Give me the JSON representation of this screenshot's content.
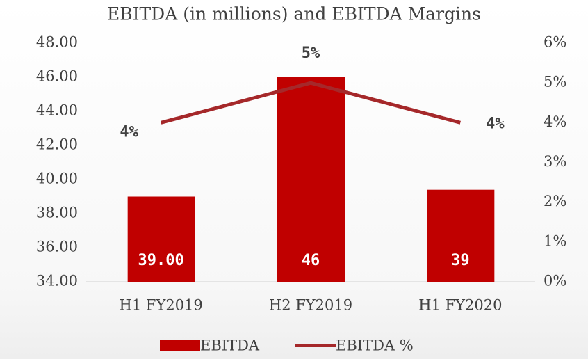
{
  "chart_data": {
    "type": "bar-line",
    "title": "EBITDA (in millions) and EBITDA Margins",
    "categories": [
      "H1 FY2019",
      "H2 FY2019",
      "H1 FY2020"
    ],
    "series": [
      {
        "name": "EBITDA",
        "color": "#c00000",
        "values": [
          39,
          46,
          39.4
        ],
        "value_labels": [
          "39.00",
          "46",
          "39"
        ]
      },
      {
        "name": "EBITDA %",
        "color": "#a5282a",
        "axis": "y2",
        "values": [
          4,
          5,
          4
        ],
        "value_labels": [
          "4%",
          "5%",
          "4%"
        ]
      }
    ],
    "ylim": [
      34,
      48
    ],
    "yticks": [
      {
        "value": 34,
        "label": "34.00"
      },
      {
        "value": 36,
        "label": "36.00"
      },
      {
        "value": 38,
        "label": "38.00"
      },
      {
        "value": 40,
        "label": "40.00"
      },
      {
        "value": 42,
        "label": "42.00"
      },
      {
        "value": 44,
        "label": "44.00"
      },
      {
        "value": 46,
        "label": "46.00"
      },
      {
        "value": 48,
        "label": "48.00"
      }
    ],
    "y2lim": [
      0,
      6
    ],
    "y2ticks": [
      {
        "value": 0,
        "label": "0%"
      },
      {
        "value": 1,
        "label": "1%"
      },
      {
        "value": 2,
        "label": "2%"
      },
      {
        "value": 3,
        "label": "3%"
      },
      {
        "value": 4,
        "label": "4%"
      },
      {
        "value": 5,
        "label": "5%"
      },
      {
        "value": 6,
        "label": "6%"
      }
    ],
    "legend": "bottom"
  }
}
